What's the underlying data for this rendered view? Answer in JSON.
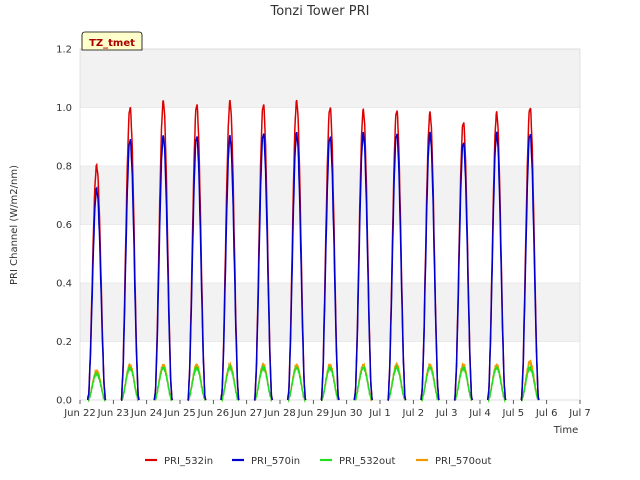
{
  "chart_data": {
    "type": "line",
    "title": "Tonzi Tower PRI",
    "xlabel": "Time",
    "ylabel": "PRI Channel (W/m2/nm)",
    "ylim": [
      0.0,
      1.2
    ],
    "yticks": [
      "0.0",
      "0.2",
      "0.4",
      "0.6",
      "0.8",
      "1.0",
      "1.2"
    ],
    "xlim": [
      0,
      15
    ],
    "xticks": [
      "Jun 22",
      "Jun 23",
      "Jun 24",
      "Jun 25",
      "Jun 26",
      "Jun 27",
      "Jun 28",
      "Jun 29",
      "Jun 30",
      "Jul 1",
      "Jul 2",
      "Jul 3",
      "Jul 4",
      "Jul 5",
      "Jul 6",
      "Jul 7"
    ],
    "site_badge": "TZ_tmet",
    "series": [
      {
        "name": "PRI_532in",
        "color": "#dd0000",
        "daily_peak": [
          0.8,
          1.0,
          1.02,
          1.01,
          1.02,
          1.01,
          1.02,
          1.0,
          0.99,
          0.99,
          0.98,
          0.95,
          0.98,
          1.0
        ]
      },
      {
        "name": "PRI_570in",
        "color": "#0000cc",
        "daily_peak": [
          0.72,
          0.89,
          0.9,
          0.9,
          0.9,
          0.91,
          0.91,
          0.9,
          0.91,
          0.91,
          0.91,
          0.88,
          0.91,
          0.91
        ]
      },
      {
        "name": "PRI_532out",
        "color": "#22dd22",
        "daily_peak": [
          0.09,
          0.11,
          0.11,
          0.11,
          0.11,
          0.11,
          0.11,
          0.11,
          0.11,
          0.11,
          0.11,
          0.11,
          0.11,
          0.11
        ]
      },
      {
        "name": "PRI_570out",
        "color": "#ee9900",
        "daily_peak": [
          0.1,
          0.12,
          0.12,
          0.12,
          0.12,
          0.12,
          0.12,
          0.12,
          0.12,
          0.12,
          0.12,
          0.12,
          0.12,
          0.13
        ]
      }
    ],
    "day_start": 0.5,
    "legend_position": "bottom-center",
    "grid": true
  }
}
